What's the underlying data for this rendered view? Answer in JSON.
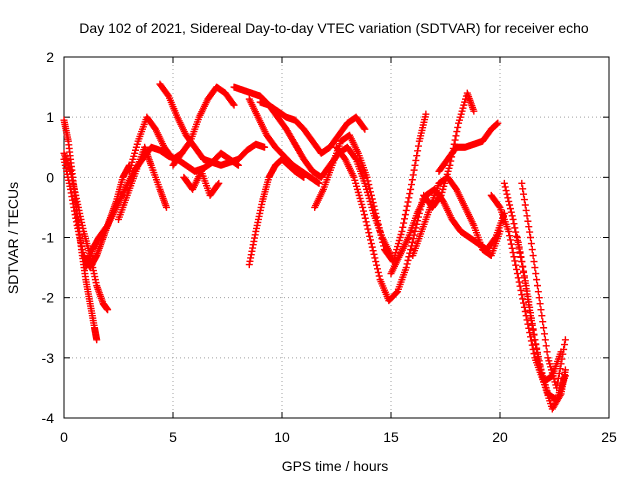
{
  "chart_data": {
    "type": "scatter",
    "title": "Day 102 of 2021, Sidereal Day-to-day VTEC variation (SDTVAR) for receiver echo",
    "xlabel": "GPS time / hours",
    "ylabel": "SDTVAR / TECUs",
    "xlim": [
      0,
      25
    ],
    "ylim": [
      -4,
      2
    ],
    "xticks": [
      "0",
      "5",
      "10",
      "15",
      "20",
      "25"
    ],
    "yticks": [
      "-4",
      "-3",
      "-2",
      "-1",
      "0",
      "1",
      "2"
    ],
    "grid": true,
    "color": "#ff0000",
    "marker": "plus",
    "series": [
      {
        "x": [
          0.0,
          0.2,
          0.4,
          0.6,
          0.8,
          1.0,
          1.2,
          1.4,
          1.5
        ],
        "y": [
          0.95,
          0.6,
          0.0,
          -0.6,
          -1.2,
          -1.7,
          -2.1,
          -2.5,
          -2.7
        ]
      },
      {
        "x": [
          0.0,
          0.3,
          0.6,
          0.9,
          1.2,
          1.5,
          1.8,
          2.1,
          2.4,
          2.7,
          3.0
        ],
        "y": [
          0.3,
          -0.2,
          -0.8,
          -1.3,
          -1.5,
          -1.3,
          -1.0,
          -0.7,
          -0.4,
          0.0,
          0.2
        ]
      },
      {
        "x": [
          0.0,
          0.3,
          0.6,
          0.9,
          1.2,
          1.5,
          1.8,
          2.0
        ],
        "y": [
          0.4,
          0.1,
          -0.4,
          -0.9,
          -1.3,
          -1.8,
          -2.1,
          -2.2
        ]
      },
      {
        "x": [
          1.0,
          1.3,
          1.6,
          2.0,
          2.4,
          2.8,
          3.2,
          3.6,
          4.0,
          4.4,
          4.8,
          5.2,
          5.6,
          6.0,
          6.4,
          6.8,
          7.2,
          7.6,
          8.0
        ],
        "y": [
          -1.5,
          -1.2,
          -1.0,
          -0.8,
          -0.5,
          -0.2,
          0.1,
          0.3,
          0.5,
          0.45,
          0.35,
          0.3,
          0.2,
          0.1,
          0.15,
          0.25,
          0.4,
          0.3,
          0.2
        ]
      },
      {
        "x": [
          2.5,
          2.9,
          3.3,
          3.7,
          4.0,
          4.4,
          4.7
        ],
        "y": [
          -0.7,
          -0.3,
          0.1,
          0.5,
          0.2,
          -0.2,
          -0.5
        ]
      },
      {
        "x": [
          3.0,
          3.4,
          3.8,
          4.2,
          4.6,
          5.0,
          5.4
        ],
        "y": [
          0.1,
          0.6,
          1.0,
          0.8,
          0.5,
          0.3,
          0.4
        ]
      },
      {
        "x": [
          4.4,
          4.8,
          5.2,
          5.6,
          6.0,
          6.4,
          6.8,
          7.2,
          7.6,
          8.0,
          8.4,
          8.8,
          9.2
        ],
        "y": [
          1.55,
          1.35,
          1.0,
          0.7,
          0.5,
          0.3,
          0.25,
          0.2,
          0.25,
          0.3,
          0.45,
          0.55,
          0.5
        ]
      },
      {
        "x": [
          5.0,
          5.4,
          5.8,
          6.2,
          6.6,
          7.0,
          7.4,
          7.8
        ],
        "y": [
          0.2,
          0.4,
          0.6,
          1.0,
          1.3,
          1.5,
          1.4,
          1.2
        ]
      },
      {
        "x": [
          5.5,
          5.9,
          6.3,
          6.7,
          7.1
        ],
        "y": [
          0.0,
          -0.2,
          0.1,
          -0.3,
          -0.1
        ]
      },
      {
        "x": [
          7.8,
          8.2,
          8.6,
          9.0,
          9.4,
          9.8,
          10.2,
          10.6,
          11.0,
          11.4,
          11.8,
          12.2,
          12.6,
          13.0,
          13.4,
          13.8,
          14.2,
          14.6,
          15.0
        ],
        "y": [
          1.5,
          1.45,
          1.4,
          1.35,
          1.2,
          1.0,
          0.8,
          0.55,
          0.3,
          0.1,
          0.0,
          0.2,
          0.4,
          0.5,
          0.3,
          -0.1,
          -0.6,
          -1.0,
          -1.3
        ]
      },
      {
        "x": [
          8.5,
          8.9,
          9.3,
          9.7,
          10.1,
          10.5,
          10.9,
          11.3,
          11.7
        ],
        "y": [
          1.3,
          1.0,
          0.7,
          0.5,
          0.35,
          0.2,
          0.1,
          0.0,
          -0.1
        ]
      },
      {
        "x": [
          8.5,
          8.8,
          9.1,
          9.4,
          9.7,
          10.0,
          10.3,
          10.6,
          11.0
        ],
        "y": [
          -1.45,
          -0.9,
          -0.4,
          0.0,
          0.2,
          0.3,
          0.2,
          0.1,
          0.0
        ]
      },
      {
        "x": [
          9.0,
          9.4,
          9.8,
          10.2,
          10.6,
          11.0,
          11.4,
          11.8,
          12.2,
          12.6,
          13.0,
          13.4,
          13.8
        ],
        "y": [
          1.25,
          1.2,
          1.1,
          1.0,
          0.95,
          0.8,
          0.6,
          0.4,
          0.5,
          0.7,
          0.9,
          1.0,
          0.8
        ]
      },
      {
        "x": [
          11.5,
          11.9,
          12.3,
          12.7,
          13.1,
          13.5,
          13.9,
          14.3,
          14.7,
          15.1,
          15.5,
          15.9,
          16.3,
          16.6
        ],
        "y": [
          -0.5,
          -0.2,
          0.2,
          0.6,
          0.7,
          0.4,
          0.0,
          -0.6,
          -1.2,
          -1.4,
          -0.9,
          -0.2,
          0.6,
          1.05
        ]
      },
      {
        "x": [
          12.5,
          12.9,
          13.3,
          13.7,
          14.1,
          14.5,
          14.9,
          15.3,
          15.7,
          16.1,
          16.5,
          16.9,
          17.3,
          17.7,
          18.1,
          18.5,
          18.8
        ],
        "y": [
          0.5,
          0.3,
          0.0,
          -0.5,
          -1.1,
          -1.7,
          -2.05,
          -1.9,
          -1.5,
          -0.9,
          -0.3,
          -0.5,
          -0.3,
          0.2,
          0.9,
          1.4,
          1.1
        ]
      },
      {
        "x": [
          15.0,
          15.4,
          15.8,
          16.2,
          16.6,
          17.0,
          17.4,
          17.8,
          18.2,
          18.6,
          19.0,
          19.4,
          19.8,
          20.2
        ],
        "y": [
          -1.6,
          -1.3,
          -1.0,
          -0.6,
          -0.3,
          -0.2,
          -0.4,
          -0.7,
          -0.9,
          -1.0,
          -1.1,
          -1.2,
          -1.0,
          -0.6
        ]
      },
      {
        "x": [
          16.0,
          16.4,
          16.8,
          17.2,
          17.6,
          18.0,
          18.4,
          18.8,
          19.2,
          19.6,
          20.0
        ],
        "y": [
          -1.3,
          -0.9,
          -0.5,
          -0.1,
          0.0,
          -0.2,
          -0.5,
          -0.8,
          -1.2,
          -1.3,
          -0.9
        ]
      },
      {
        "x": [
          17.2,
          17.6,
          18.0,
          18.4,
          18.8,
          19.2,
          19.6,
          19.9
        ],
        "y": [
          0.1,
          0.3,
          0.5,
          0.5,
          0.55,
          0.6,
          0.8,
          0.9
        ]
      },
      {
        "x": [
          19.6,
          20.0,
          20.4,
          20.8,
          21.2,
          21.6,
          22.0,
          22.4,
          22.8
        ],
        "y": [
          -0.3,
          -0.5,
          -0.9,
          -1.6,
          -2.3,
          -3.0,
          -3.4,
          -3.3,
          -2.9
        ]
      },
      {
        "x": [
          20.2,
          20.6,
          21.0,
          21.4,
          21.8,
          22.2,
          22.6,
          23.0
        ],
        "y": [
          -0.1,
          -0.7,
          -1.4,
          -2.3,
          -3.1,
          -3.6,
          -3.7,
          -3.3
        ]
      },
      {
        "x": [
          20.8,
          21.2,
          21.6,
          22.0,
          22.4,
          22.8,
          23.0
        ],
        "y": [
          -1.0,
          -1.8,
          -2.7,
          -3.4,
          -3.85,
          -3.6,
          -3.2
        ]
      },
      {
        "x": [
          21.0,
          21.4,
          21.8,
          22.2,
          22.6,
          23.0
        ],
        "y": [
          -0.1,
          -1.0,
          -2.0,
          -3.0,
          -3.5,
          -2.7
        ]
      }
    ]
  }
}
